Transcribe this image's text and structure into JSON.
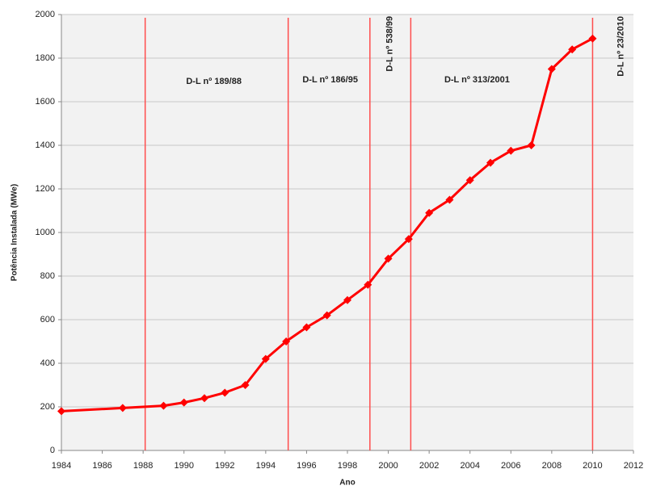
{
  "chart_data": {
    "type": "line",
    "x_label": "Ano",
    "y_label": "Potência Instalada (MWe)",
    "x": [
      1984,
      1987,
      1989,
      1990,
      1991,
      1992,
      1993,
      1994,
      1995,
      1996,
      1997,
      1998,
      1999,
      2000,
      2001,
      2002,
      2003,
      2004,
      2005,
      2006,
      2007,
      2008,
      2009,
      2010
    ],
    "series": [
      {
        "name": "Potência Instalada",
        "color": "#ff0000",
        "values": [
          180,
          195,
          205,
          220,
          240,
          265,
          300,
          420,
          500,
          565,
          620,
          690,
          760,
          880,
          970,
          1090,
          1150,
          1240,
          1320,
          1375,
          1400,
          1750,
          1840,
          1890
        ]
      }
    ],
    "xlim": [
      1984,
      2012
    ],
    "xticks": [
      1984,
      1986,
      1988,
      1990,
      1992,
      1994,
      1996,
      1998,
      2000,
      2002,
      2004,
      2006,
      2008,
      2010,
      2012
    ],
    "ylim": [
      0,
      2000
    ],
    "yticks": [
      0,
      200,
      400,
      600,
      800,
      1000,
      1200,
      1400,
      1600,
      1800,
      2000
    ],
    "grid": true,
    "vlines": [
      {
        "x": 1988.1,
        "label": "D-L nº 189/88"
      },
      {
        "x": 1995.1,
        "label": "D-L nº 186/95"
      },
      {
        "x": 1999.1,
        "label": "D-L nº 538/99"
      },
      {
        "x": 2001.1,
        "label": "D-L nº 313/2001"
      },
      {
        "x": 2010,
        "label": "D-L nº 23/2010"
      }
    ],
    "vline_color": "#ff4d4d"
  }
}
